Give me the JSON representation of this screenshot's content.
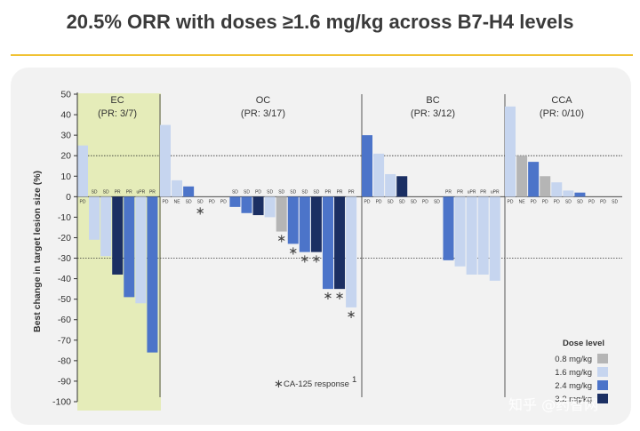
{
  "title": "20.5% ORR with doses ≥1.6 mg/kg across B7-H4 levels",
  "watermark": "知乎 @药智网",
  "chart_data": {
    "type": "bar",
    "ylabel": "Best change in target lesion size (%)",
    "ylim": [
      -100,
      50
    ],
    "yticks": [
      50,
      40,
      30,
      20,
      10,
      0,
      -10,
      -20,
      -30,
      -40,
      -50,
      -60,
      -70,
      -80,
      -90,
      -100
    ],
    "reference_lines": [
      20,
      -30
    ],
    "doses": [
      {
        "key": "0.8",
        "label": "0.8 mg/kg",
        "color": "#b5b5b5"
      },
      {
        "key": "1.6",
        "label": "1.6 mg/kg",
        "color": "#c6d5ef"
      },
      {
        "key": "2.4",
        "label": "2.4 mg/kg",
        "color": "#4c74c9"
      },
      {
        "key": "3.2",
        "label": "3.2 mg/kg",
        "color": "#1b2f63"
      }
    ],
    "legend_title": "Dose level",
    "footnote": "CA-125 response",
    "footnote_superscript": "1",
    "groups": [
      {
        "name": "EC",
        "pr": "(PR: 3/7)",
        "highlight": true,
        "bars": [
          {
            "value": 25,
            "dose": "1.6",
            "response": "PD"
          },
          {
            "value": -21,
            "dose": "1.6",
            "response": "SD"
          },
          {
            "value": -29,
            "dose": "1.6",
            "response": "SD"
          },
          {
            "value": -38,
            "dose": "3.2",
            "response": "PR"
          },
          {
            "value": -49,
            "dose": "2.4",
            "response": "PR"
          },
          {
            "value": -52,
            "dose": "1.6",
            "response": "uPR"
          },
          {
            "value": -76,
            "dose": "2.4",
            "response": "PR"
          }
        ]
      },
      {
        "name": "OC",
        "pr": "(PR: 3/17)",
        "highlight": false,
        "bars": [
          {
            "value": 35,
            "dose": "1.6",
            "response": "PD"
          },
          {
            "value": 8,
            "dose": "1.6",
            "response": "NE"
          },
          {
            "value": 5,
            "dose": "2.4",
            "response": "SD"
          },
          {
            "value": 0,
            "dose": "1.6",
            "response": "SD",
            "ca125": true
          },
          {
            "value": 0,
            "dose": "1.6",
            "response": "PD"
          },
          {
            "value": 0,
            "dose": "1.6",
            "response": "PD"
          },
          {
            "value": -5,
            "dose": "2.4",
            "response": "SD"
          },
          {
            "value": -8,
            "dose": "2.4",
            "response": "SD"
          },
          {
            "value": -9,
            "dose": "3.2",
            "response": "PD"
          },
          {
            "value": -10,
            "dose": "1.6",
            "response": "SD"
          },
          {
            "value": -17,
            "dose": "0.8",
            "response": "SD",
            "ca125": true
          },
          {
            "value": -23,
            "dose": "2.4",
            "response": "SD",
            "ca125": true
          },
          {
            "value": -27,
            "dose": "2.4",
            "response": "SD",
            "ca125": true
          },
          {
            "value": -27,
            "dose": "3.2",
            "response": "SD",
            "ca125": true
          },
          {
            "value": -45,
            "dose": "2.4",
            "response": "PR",
            "ca125": true
          },
          {
            "value": -45,
            "dose": "3.2",
            "response": "PR",
            "ca125": true
          },
          {
            "value": -54,
            "dose": "1.6",
            "response": "PR",
            "ca125": true
          }
        ]
      },
      {
        "name": "BC",
        "pr": "(PR: 3/12)",
        "highlight": false,
        "bars": [
          {
            "value": 30,
            "dose": "2.4",
            "response": "PD"
          },
          {
            "value": 21,
            "dose": "1.6",
            "response": "PD"
          },
          {
            "value": 11,
            "dose": "1.6",
            "response": "SD"
          },
          {
            "value": 10,
            "dose": "3.2",
            "response": "SD"
          },
          {
            "value": 0,
            "dose": "1.6",
            "response": "SD"
          },
          {
            "value": 0,
            "dose": "1.6",
            "response": "PD"
          },
          {
            "value": 0,
            "dose": "1.6",
            "response": "SD"
          },
          {
            "value": -31,
            "dose": "2.4",
            "response": "PR"
          },
          {
            "value": -34,
            "dose": "1.6",
            "response": "PR"
          },
          {
            "value": -38,
            "dose": "1.6",
            "response": "uPR"
          },
          {
            "value": -38,
            "dose": "1.6",
            "response": "PR"
          },
          {
            "value": -41,
            "dose": "1.6",
            "response": "uPR"
          }
        ]
      },
      {
        "name": "CCA",
        "pr": "(PR: 0/10)",
        "highlight": false,
        "bars": [
          {
            "value": 44,
            "dose": "1.6",
            "response": "PD"
          },
          {
            "value": 20,
            "dose": "0.8",
            "response": "NE"
          },
          {
            "value": 17,
            "dose": "2.4",
            "response": "PD"
          },
          {
            "value": 10,
            "dose": "0.8",
            "response": "PD"
          },
          {
            "value": 7,
            "dose": "1.6",
            "response": "PD"
          },
          {
            "value": 3,
            "dose": "1.6",
            "response": "SD"
          },
          {
            "value": 2,
            "dose": "2.4",
            "response": "SD"
          },
          {
            "value": 0,
            "dose": "1.6",
            "response": "PD"
          },
          {
            "value": 0,
            "dose": "1.6",
            "response": "PD"
          },
          {
            "value": 0,
            "dose": "1.6",
            "response": "SD"
          }
        ]
      }
    ]
  }
}
